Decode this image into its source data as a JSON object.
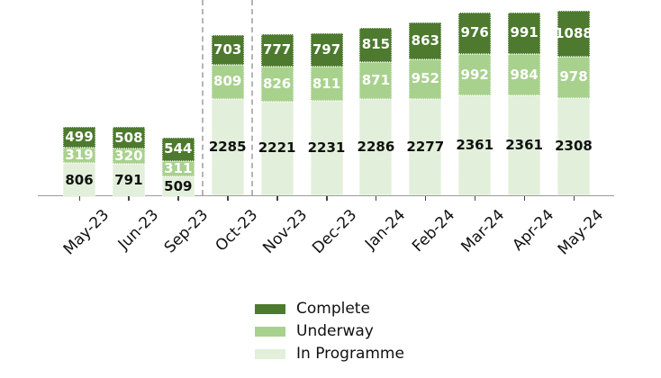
{
  "chart_data": {
    "type": "bar",
    "variant": "stacked",
    "title": "",
    "xlabel": "",
    "ylabel": "",
    "grid": false,
    "legend_position": "bottom-center",
    "tick_label_rotation_deg": 45,
    "categories": [
      "May-23",
      "Jun-23",
      "Sep-23",
      "Oct-23",
      "Nov-23",
      "Dec-23",
      "Jan-24",
      "Feb-24",
      "Mar-24",
      "Apr-24",
      "May-24"
    ],
    "series": [
      {
        "name": "Complete",
        "color": "#4d7a2e",
        "label_color": "#ffffff",
        "values": [
          499,
          508,
          544,
          703,
          777,
          797,
          815,
          863,
          976,
          991,
          1088
        ]
      },
      {
        "name": "Underway",
        "color": "#a9d18e",
        "label_color": "#ffffff",
        "values": [
          319,
          320,
          311,
          809,
          826,
          811,
          871,
          952,
          992,
          984,
          978
        ]
      },
      {
        "name": "In Programme",
        "color": "#e2efda",
        "label_color": "#111111",
        "values": [
          806,
          791,
          509,
          2285,
          2221,
          2231,
          2286,
          2277,
          2361,
          2361,
          2308
        ]
      }
    ],
    "stack_order": "first series on top",
    "separators_after_category_index": [
      2,
      3
    ],
    "separator_color": "#b5b5b5",
    "axis_color": "#9c9c9c",
    "ylim": [
      0,
      4374
    ]
  }
}
